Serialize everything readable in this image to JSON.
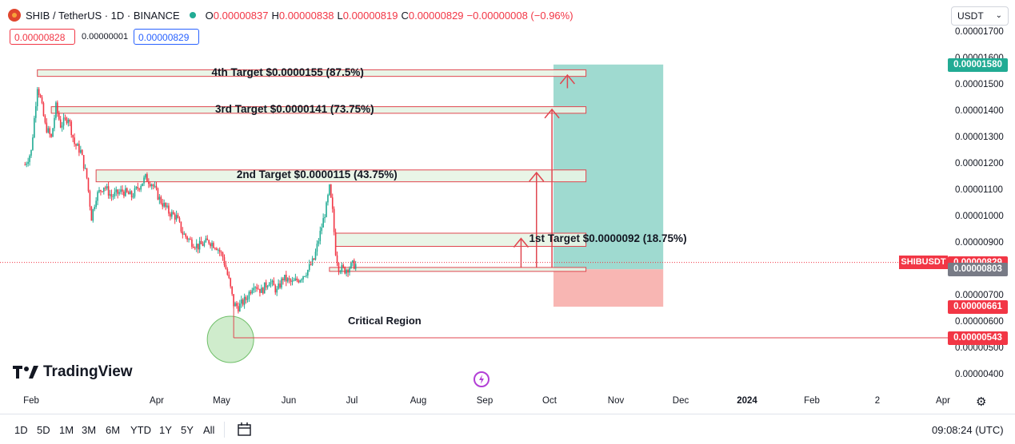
{
  "header": {
    "symbol_title": "SHIB / TetherUS · 1D · BINANCE",
    "ohlc": [
      {
        "k": "O",
        "v": "0.00000837"
      },
      {
        "k": "H",
        "v": "0.00000838"
      },
      {
        "k": "L",
        "v": "0.00000819"
      },
      {
        "k": "C",
        "v": "0.00000829"
      }
    ],
    "change": "−0.00000008 (−0.96%)",
    "sell_price": "0.00000828",
    "spread": "0.00000001",
    "buy_price": "0.00000829",
    "currency_select": "USDT"
  },
  "colors": {
    "up": "#22ab94",
    "down": "#f23645",
    "target_fill": "#e7f4e4",
    "target_border": "#e0464f",
    "profit_zone": "#8ed3c8",
    "loss_zone": "#f7a9a6",
    "arrow": "#e0464f"
  },
  "chart_data": {
    "type": "candlestick",
    "symbol": "SHIBUSDT",
    "ylim": [
      3.4e-06,
      1.74e-05
    ],
    "y_scale": "linear",
    "y_ticks": [
      "0.00001700",
      "0.00001600",
      "0.00001500",
      "0.00001400",
      "0.00001300",
      "0.00001200",
      "0.00001100",
      "0.00001000",
      "0.00000900",
      "0.00000700",
      "0.00000600",
      "0.00000500",
      "0.00000400"
    ],
    "x_ticks": [
      "Feb",
      "Apr",
      "May",
      "Jun",
      "Jul",
      "Aug",
      "Sep",
      "Oct",
      "Nov",
      "Dec",
      "2024",
      "Feb",
      "2",
      "Apr"
    ],
    "price_path": [
      [
        "2023-01-28",
        1.2e-05
      ],
      [
        "2023-02-01",
        1.25e-05
      ],
      [
        "2023-02-05",
        1.5e-05
      ],
      [
        "2023-02-07",
        1.45e-05
      ],
      [
        "2023-02-10",
        1.35e-05
      ],
      [
        "2023-02-14",
        1.3e-05
      ],
      [
        "2023-02-17",
        1.42e-05
      ],
      [
        "2023-02-20",
        1.35e-05
      ],
      [
        "2023-02-25",
        1.38e-05
      ],
      [
        "2023-03-01",
        1.28e-05
      ],
      [
        "2023-03-05",
        1.25e-05
      ],
      [
        "2023-03-09",
        1.15e-05
      ],
      [
        "2023-03-12",
        1e-05
      ],
      [
        "2023-03-15",
        1.08e-05
      ],
      [
        "2023-03-20",
        1.12e-05
      ],
      [
        "2023-03-25",
        1.08e-05
      ],
      [
        "2023-04-01",
        1.1e-05
      ],
      [
        "2023-04-07",
        1.08e-05
      ],
      [
        "2023-04-12",
        1.12e-05
      ],
      [
        "2023-04-16",
        1.15e-05
      ],
      [
        "2023-04-20",
        1.13e-05
      ],
      [
        "2023-04-25",
        1.07e-05
      ],
      [
        "2023-05-01",
        1.02e-05
      ],
      [
        "2023-05-06",
        1e-05
      ],
      [
        "2023-05-10",
        9.4e-06
      ],
      [
        "2023-05-15",
        9.1e-06
      ],
      [
        "2023-05-20",
        8.9e-06
      ],
      [
        "2023-05-27",
        9.1e-06
      ],
      [
        "2023-06-01",
        8.9e-06
      ],
      [
        "2023-06-05",
        8.5e-06
      ],
      [
        "2023-06-09",
        7.6e-06
      ],
      [
        "2023-06-12",
        6.7e-06
      ],
      [
        "2023-06-15",
        6.6e-06
      ],
      [
        "2023-06-20",
        6.9e-06
      ],
      [
        "2023-06-25",
        7.5e-06
      ],
      [
        "2023-06-30",
        7.2e-06
      ],
      [
        "2023-07-05",
        7.6e-06
      ],
      [
        "2023-07-10",
        7.2e-06
      ],
      [
        "2023-07-14",
        7.7e-06
      ],
      [
        "2023-07-20",
        7.5e-06
      ],
      [
        "2023-07-25",
        7.7e-06
      ],
      [
        "2023-07-30",
        8e-06
      ],
      [
        "2023-08-03",
        8.4e-06
      ],
      [
        "2023-08-07",
        9.4e-06
      ],
      [
        "2023-08-11",
        1.04e-05
      ],
      [
        "2023-08-13",
        1.11e-05
      ],
      [
        "2023-08-15",
        1.02e-05
      ],
      [
        "2023-08-17",
        8.7e-06
      ],
      [
        "2023-08-19",
        8.1e-06
      ],
      [
        "2023-08-23",
        8e-06
      ],
      [
        "2023-08-28",
        8.2e-06
      ],
      [
        "2023-08-31",
        8.2e-06
      ]
    ],
    "target_zones": [
      {
        "label": "4th Target $0.0000155 (87.5%)",
        "y_low": 1.535e-05,
        "y_high": 1.56e-05,
        "x_start": "2023-02-05",
        "x_end": "2024-01-26"
      },
      {
        "label": "3rd Target $0.0000141 (73.75%)",
        "y_low": 1.395e-05,
        "y_high": 1.42e-05,
        "x_start": "2023-02-14",
        "x_end": "2024-01-26"
      },
      {
        "label": "2nd Target $0.0000115 (43.75%)",
        "y_low": 1.135e-05,
        "y_high": 1.18e-05,
        "x_start": "2023-03-15",
        "x_end": "2024-01-26"
      },
      {
        "label": "1st Target $0.0000092 (18.75%)",
        "y_low": 8.9e-06,
        "y_high": 9.4e-06,
        "x_start": "2023-08-17",
        "x_end": "2024-01-26"
      }
    ],
    "entry_zone": {
      "y_low": 7.95e-06,
      "y_high": 8.1e-06,
      "x_start": "2023-08-13",
      "x_end": "2024-01-26"
    },
    "position": {
      "entry": 8.03e-06,
      "target": 1.58e-05,
      "stop": 6.61e-06,
      "x_start": "2024-01-05",
      "x_end": "2024-03-16"
    },
    "critical_level": {
      "label": "Critical Region",
      "y": 5.43e-06,
      "x_start": "2023-06-11"
    },
    "arrows": [
      {
        "x": "2023-12-15",
        "from": 8.1e-06,
        "to": 9.2e-06
      },
      {
        "x": "2023-12-25",
        "from": 8.1e-06,
        "to": 1.17e-05
      },
      {
        "x": "2024-01-04",
        "from": 8.1e-06,
        "to": 1.41e-05
      },
      {
        "x": "2024-01-14",
        "from": 1.49e-05,
        "to": 1.54e-05
      }
    ],
    "last_price": 8.29e-06,
    "price_tags": [
      {
        "text": "0.00001580",
        "y": 1.58e-05,
        "color": "#22ab94"
      },
      {
        "text": "0.00000829",
        "y": 8.29e-06,
        "color": "#f23645"
      },
      {
        "text": "0.00000803",
        "y": 8.03e-06,
        "color": "#787b86"
      },
      {
        "text": "0.00000661",
        "y": 6.61e-06,
        "color": "#f23645"
      },
      {
        "text": "0.00000543",
        "y": 5.43e-06,
        "color": "#f23645"
      }
    ],
    "symbol_tag": "SHIBUSDT"
  },
  "branding": {
    "logo_text": "TradingView"
  },
  "bottom": {
    "periods": [
      "1D",
      "5D",
      "1M",
      "3M",
      "6M",
      "YTD",
      "1Y",
      "5Y",
      "All"
    ],
    "time": "09:08:24 (UTC)"
  }
}
